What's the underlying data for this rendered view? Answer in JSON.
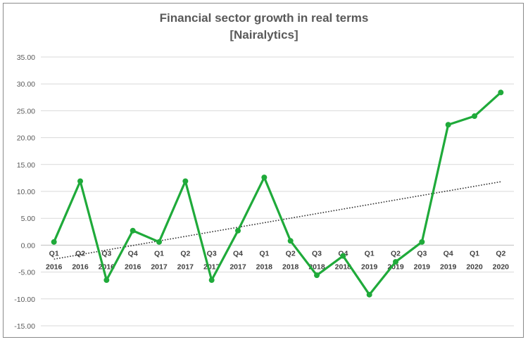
{
  "chart_data": {
    "type": "line",
    "title": "Financial sector growth in real terms",
    "subtitle": "[Nairalytics]",
    "categories": [
      [
        "Q1",
        "2016"
      ],
      [
        "Q2",
        "2016"
      ],
      [
        "Q3",
        "2016"
      ],
      [
        "Q4",
        "2016"
      ],
      [
        "Q1",
        "2017"
      ],
      [
        "Q2",
        "2017"
      ],
      [
        "Q3",
        "2017"
      ],
      [
        "Q4",
        "2017"
      ],
      [
        "Q1",
        "2018"
      ],
      [
        "Q2",
        "2018"
      ],
      [
        "Q3",
        "2018"
      ],
      [
        "Q4",
        "2018"
      ],
      [
        "Q1",
        "2019"
      ],
      [
        "Q2",
        "2019"
      ],
      [
        "Q3",
        "2019"
      ],
      [
        "Q4",
        "2019"
      ],
      [
        "Q1",
        "2020"
      ],
      [
        "Q2",
        "2020"
      ]
    ],
    "series": [
      {
        "values": [
          0.6,
          11.9,
          -6.5,
          2.7,
          0.6,
          11.9,
          -6.5,
          2.7,
          12.6,
          0.8,
          -5.6,
          -2.0,
          -9.2,
          -3.1,
          0.6,
          22.4,
          24.0,
          28.4
        ],
        "color": "#1faa3a"
      }
    ],
    "trendline": {
      "style": "dotted",
      "color": "#333333",
      "start": -2.6,
      "end": 11.8
    },
    "ylim": [
      -15,
      35
    ],
    "yticks": [
      "35.00",
      "30.00",
      "25.00",
      "20.00",
      "15.00",
      "10.00",
      "5.00",
      "0.00",
      "-5.00",
      "-10.00",
      "-15.00"
    ],
    "ytick_values": [
      35,
      30,
      25,
      20,
      15,
      10,
      5,
      0,
      -5,
      -10,
      -15
    ],
    "grid": true,
    "legend": "none"
  }
}
